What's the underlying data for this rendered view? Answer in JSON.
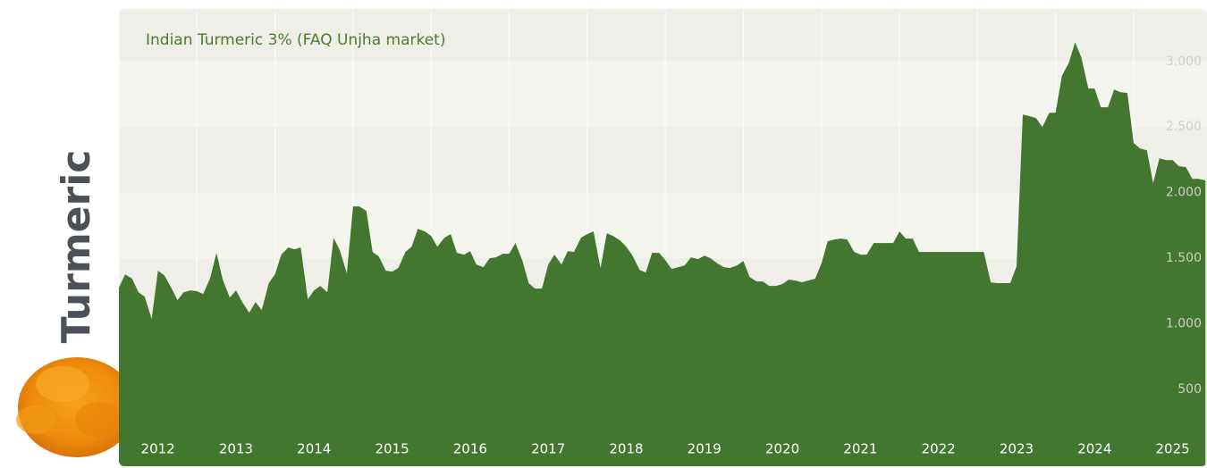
{
  "label": "Turmeric",
  "chart_data": {
    "type": "area",
    "title": "Indian Turmeric 3% (FAQ Unjha market)",
    "x": [
      2012,
      2012.08,
      2012.17,
      2012.25,
      2012.33,
      2012.42,
      2012.5,
      2012.58,
      2012.67,
      2012.75,
      2012.83,
      2012.92,
      2013,
      2013.08,
      2013.17,
      2013.25,
      2013.33,
      2013.42,
      2013.5,
      2013.58,
      2013.67,
      2013.75,
      2013.83,
      2013.92,
      2014,
      2014.08,
      2014.17,
      2014.25,
      2014.33,
      2014.42,
      2014.5,
      2014.58,
      2014.67,
      2014.75,
      2014.83,
      2014.92,
      2015,
      2015.08,
      2015.17,
      2015.25,
      2015.33,
      2015.42,
      2015.5,
      2015.58,
      2015.67,
      2015.75,
      2015.83,
      2015.92,
      2016,
      2016.08,
      2016.17,
      2016.25,
      2016.33,
      2016.42,
      2016.5,
      2016.58,
      2016.67,
      2016.75,
      2016.83,
      2016.92,
      2017,
      2017.08,
      2017.17,
      2017.25,
      2017.33,
      2017.42,
      2017.5,
      2017.58,
      2017.67,
      2017.75,
      2017.83,
      2017.92,
      2018,
      2018.08,
      2018.17,
      2018.25,
      2018.33,
      2018.42,
      2018.5,
      2018.58,
      2018.67,
      2018.75,
      2018.83,
      2018.92,
      2019,
      2019.08,
      2019.17,
      2019.25,
      2019.33,
      2019.42,
      2019.5,
      2019.58,
      2019.67,
      2019.75,
      2019.83,
      2019.92,
      2020,
      2020.08,
      2020.17,
      2020.25,
      2020.33,
      2020.42,
      2020.5,
      2020.58,
      2020.67,
      2020.75,
      2020.83,
      2020.92,
      2021,
      2021.08,
      2021.17,
      2021.25,
      2021.33,
      2021.42,
      2021.5,
      2021.58,
      2021.67,
      2021.75,
      2021.83,
      2021.92,
      2022,
      2022.08,
      2022.17,
      2022.25,
      2022.33,
      2022.42,
      2022.5,
      2022.58,
      2022.67,
      2022.75,
      2022.83,
      2022.92,
      2023,
      2023.08,
      2023.17,
      2023.25,
      2023.33,
      2023.42,
      2023.5,
      2023.58,
      2023.67,
      2023.75,
      2023.83,
      2023.92,
      2024,
      2024.08,
      2024.17,
      2024.25,
      2024.33,
      2024.42,
      2024.5,
      2024.58,
      2024.67,
      2024.75,
      2024.83,
      2024.92,
      2025,
      2025.08,
      2025.17,
      2025.25,
      2025.33,
      2025.42,
      2025.5,
      2025.58,
      2025.67,
      2025.75,
      2025.83,
      2025.92
    ],
    "series": [
      {
        "color": "#43762e",
        "values": [
          1276,
          1378,
          1344,
          1241,
          1207,
          1037,
          1405,
          1371,
          1276,
          1180,
          1241,
          1255,
          1248,
          1228,
          1350,
          1541,
          1337,
          1200,
          1255,
          1166,
          1085,
          1166,
          1105,
          1310,
          1378,
          1527,
          1582,
          1568,
          1582,
          1187,
          1255,
          1289,
          1241,
          1656,
          1561,
          1384,
          1895,
          1895,
          1861,
          1548,
          1514,
          1405,
          1398,
          1425,
          1548,
          1588,
          1724,
          1704,
          1670,
          1588,
          1656,
          1684,
          1541,
          1527,
          1554,
          1452,
          1432,
          1500,
          1507,
          1534,
          1534,
          1616,
          1480,
          1310,
          1269,
          1269,
          1452,
          1527,
          1452,
          1554,
          1548,
          1656,
          1684,
          1704,
          1425,
          1690,
          1670,
          1636,
          1588,
          1520,
          1412,
          1391,
          1541,
          1541,
          1486,
          1418,
          1432,
          1446,
          1507,
          1493,
          1520,
          1500,
          1459,
          1432,
          1425,
          1446,
          1480,
          1357,
          1323,
          1323,
          1289,
          1289,
          1303,
          1337,
          1330,
          1316,
          1330,
          1344,
          1459,
          1629,
          1643,
          1650,
          1643,
          1548,
          1527,
          1527,
          1616,
          1616,
          1616,
          1616,
          1704,
          1650,
          1650,
          1548,
          1548,
          1548,
          1548,
          1548,
          1548,
          1548,
          1548,
          1548,
          1548,
          1548,
          1316,
          1310,
          1310,
          1310,
          1439,
          2595,
          2582,
          2568,
          2500,
          2609,
          2609,
          2888,
          2990,
          3146,
          3031,
          2793,
          2793,
          2650,
          2650,
          2786,
          2765,
          2759,
          2378,
          2337,
          2323,
          2071,
          2262,
          2248,
          2248,
          2201,
          2194,
          2105,
          2105,
          2092
        ]
      }
    ],
    "xlim": [
      2012,
      2025.94
    ],
    "xticks": [
      2012,
      2013,
      2014,
      2015,
      2016,
      2017,
      2018,
      2019,
      2020,
      2021,
      2022,
      2023,
      2024,
      2025
    ],
    "ylim": [
      -85,
      3400
    ],
    "yticks": [
      500,
      {
        "value": 1000,
        "label": "1.000"
      },
      {
        "value": 1500,
        "label": "1.500"
      },
      {
        "value": 2000,
        "label": "2.000"
      },
      {
        "value": 2500,
        "label": "2.500"
      },
      {
        "value": 3000,
        "label": "3.000"
      }
    ],
    "grid": true
  }
}
